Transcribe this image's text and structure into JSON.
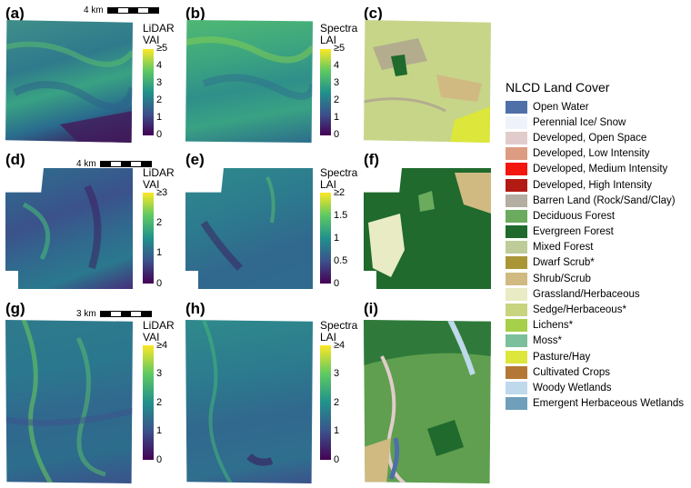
{
  "panels": {
    "a": {
      "label": "(a)",
      "scale": "4 km",
      "cbar_title": [
        "LiDAR",
        "VAI"
      ],
      "ticks": [
        "≥5",
        "4",
        "3",
        "2",
        "1",
        "0"
      ]
    },
    "b": {
      "label": "(b)",
      "cbar_title": [
        "Spectra",
        "LAI"
      ],
      "ticks": [
        "≥5",
        "4",
        "3",
        "2",
        "1",
        "0"
      ]
    },
    "c": {
      "label": "(c)"
    },
    "d": {
      "label": "(d)",
      "scale": "4 km",
      "cbar_title": [
        "LiDAR",
        "VAI"
      ],
      "ticks": [
        "≥3",
        "2",
        "1",
        "0"
      ]
    },
    "e": {
      "label": "(e)",
      "cbar_title": [
        "Spectra",
        "LAI"
      ],
      "ticks": [
        "≥2",
        "1.5",
        "1",
        "0.5",
        "0"
      ]
    },
    "f": {
      "label": "(f)"
    },
    "g": {
      "label": "(g)",
      "scale": "3 km",
      "cbar_title": [
        "LiDAR",
        "VAI"
      ],
      "ticks": [
        "≥4",
        "3",
        "2",
        "1",
        "0"
      ]
    },
    "h": {
      "label": "(h)",
      "cbar_title": [
        "Spectra",
        "LAI"
      ],
      "ticks": [
        "≥4",
        "3",
        "2",
        "1",
        "0"
      ]
    },
    "i": {
      "label": "(i)"
    }
  },
  "legend": {
    "title": "NLCD Land Cover",
    "items": [
      {
        "label": "Open Water",
        "color": "#4f6fa8"
      },
      {
        "label": "Perennial Ice/ Snow",
        "color": "#eef3fb"
      },
      {
        "label": "Developed, Open Space",
        "color": "#e2cccb"
      },
      {
        "label": "Developed, Low Intensity",
        "color": "#dd9c81"
      },
      {
        "label": "Developed, Medium Intensity",
        "color": "#f2160f"
      },
      {
        "label": "Developed, High Intensity",
        "color": "#b21a14"
      },
      {
        "label": "Barren Land (Rock/Sand/Clay)",
        "color": "#b3ada2"
      },
      {
        "label": "Deciduous Forest",
        "color": "#6aab5e"
      },
      {
        "label": "Evergreen Forest",
        "color": "#1f6a2c"
      },
      {
        "label": "Mixed Forest",
        "color": "#bdcc98"
      },
      {
        "label": "Dwarf Scrub*",
        "color": "#ab9637"
      },
      {
        "label": "Shrub/Scrub",
        "color": "#d0ba82"
      },
      {
        "label": "Grassland/Herbaceous",
        "color": "#e8ebc4"
      },
      {
        "label": "Sedge/Herbaceous*",
        "color": "#c8d47e"
      },
      {
        "label": "Lichens*",
        "color": "#a6d049"
      },
      {
        "label": "Moss*",
        "color": "#7bbf9c"
      },
      {
        "label": "Pasture/Hay",
        "color": "#dce63b"
      },
      {
        "label": "Cultivated Crops",
        "color": "#b47836"
      },
      {
        "label": "Woody Wetlands",
        "color": "#bed9ec"
      },
      {
        "label": "Emergent Herbaceous Wetlands",
        "color": "#6f9fba"
      }
    ]
  }
}
